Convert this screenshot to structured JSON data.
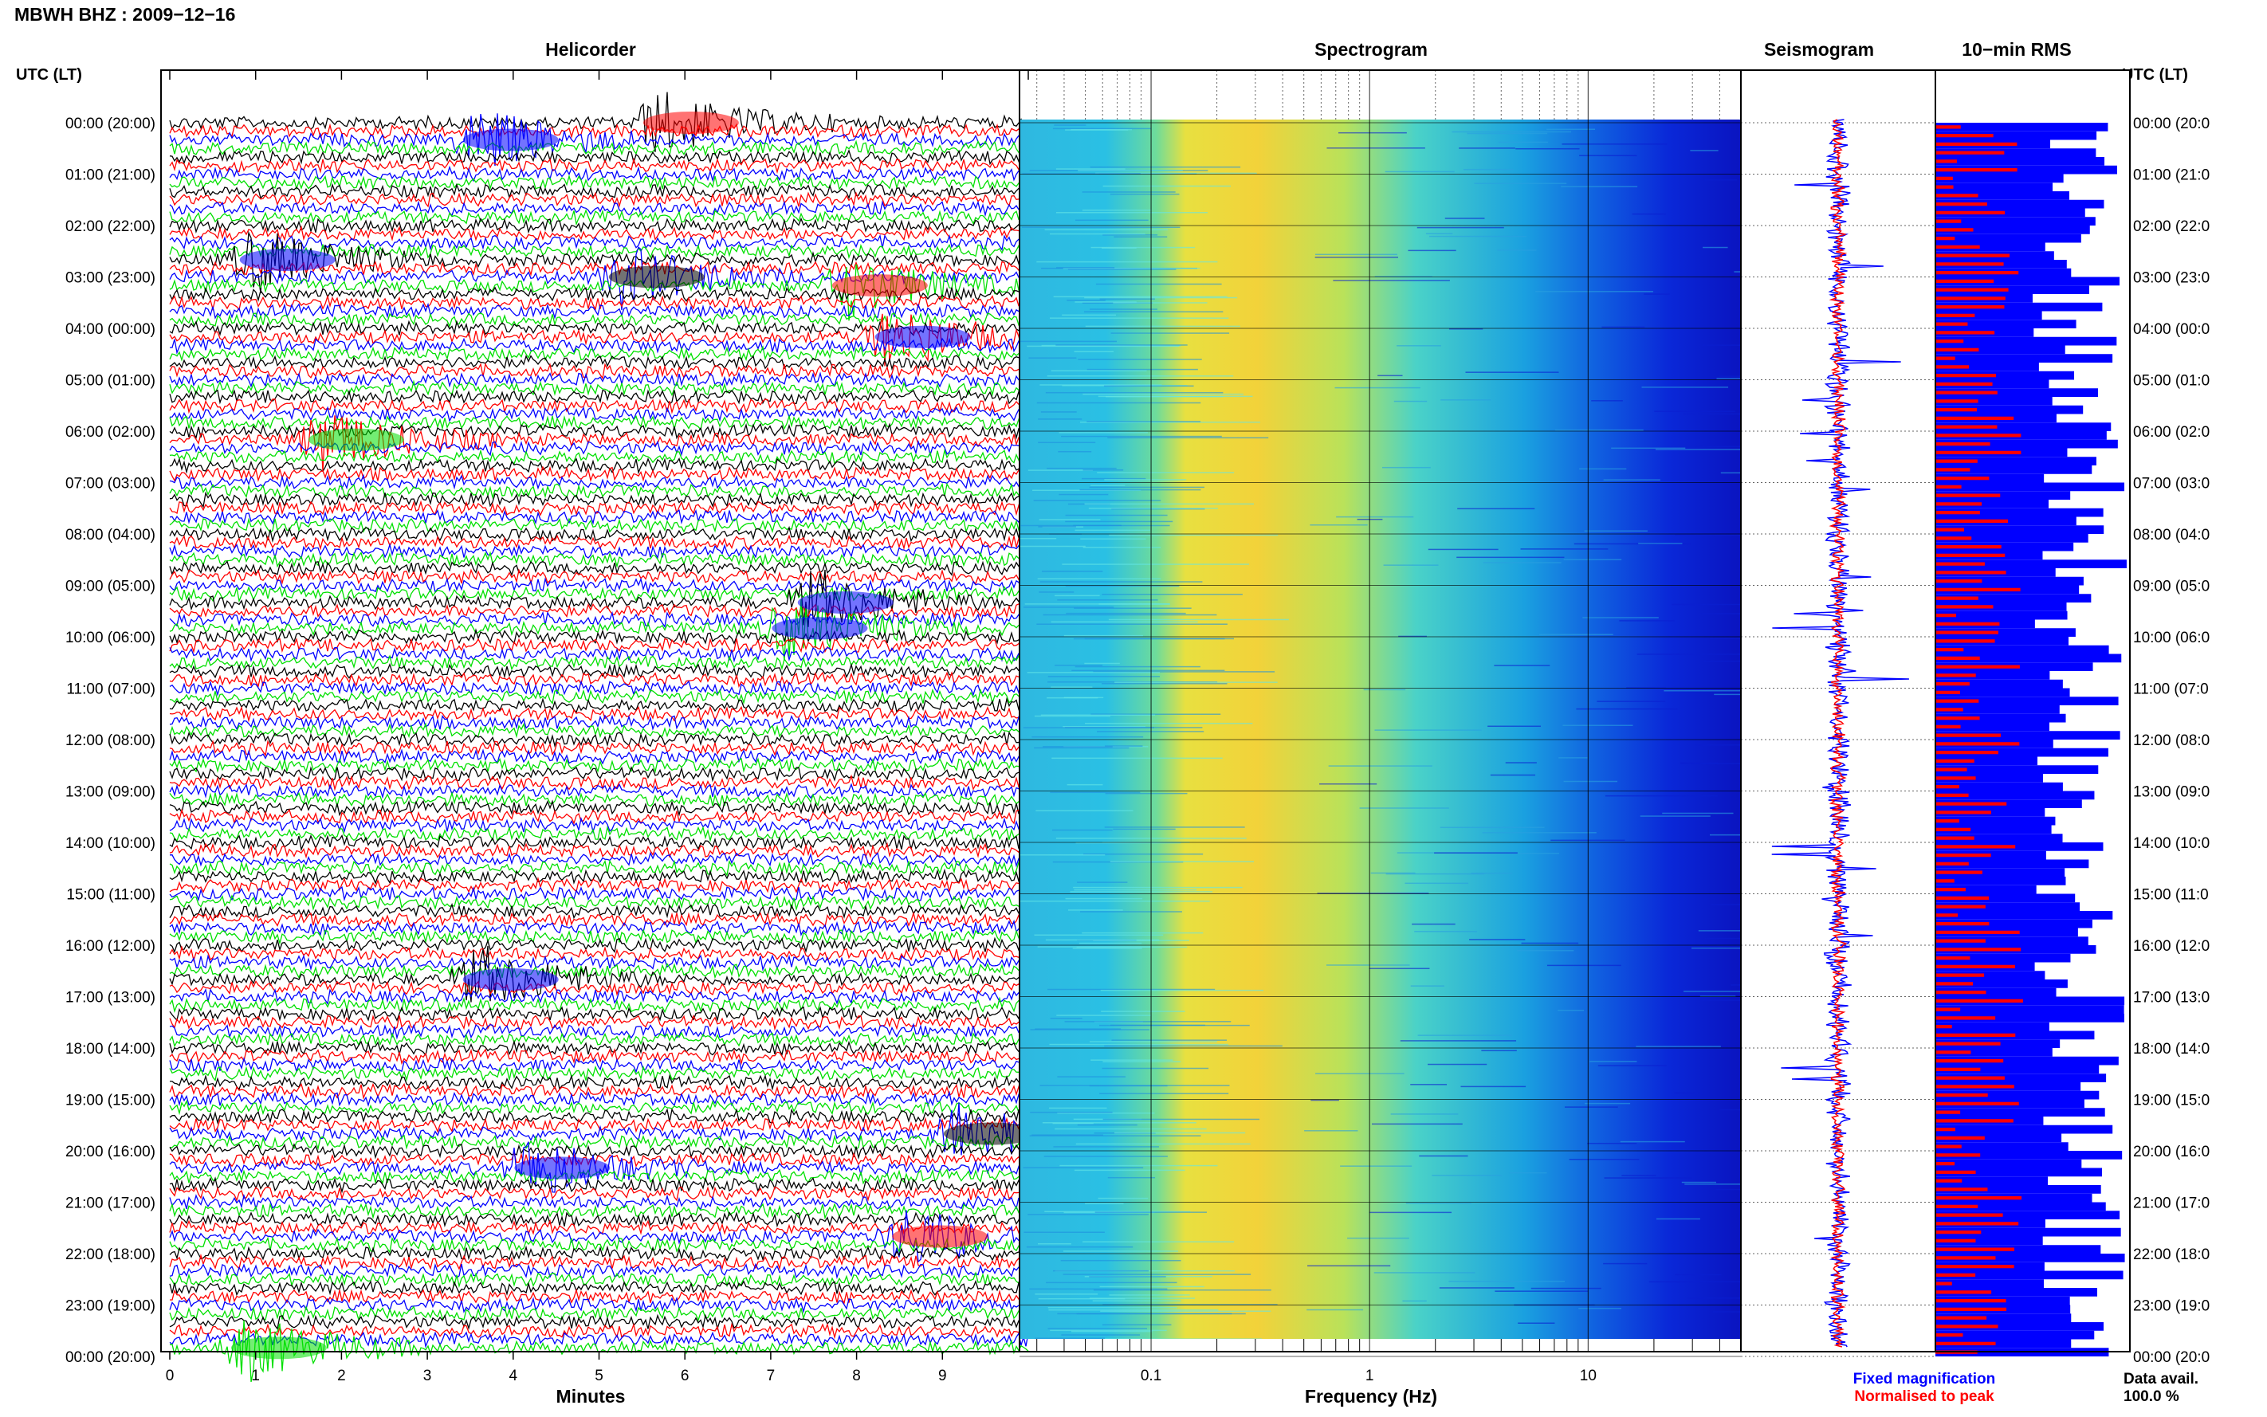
{
  "title": "MBWH BHZ : 2009−12−16",
  "utc_header": "UTC (LT)",
  "panels": {
    "helicorder": "Helicorder",
    "spectrogram": "Spectrogram",
    "seismogram": "Seismogram",
    "rms": "10−min RMS"
  },
  "time_labels": [
    "00:00 (20:00)",
    "01:00 (21:00)",
    "02:00 (22:00)",
    "03:00 (23:00)",
    "04:00 (00:00)",
    "05:00 (01:00)",
    "06:00 (02:00)",
    "07:00 (03:00)",
    "08:00 (04:00)",
    "09:00 (05:00)",
    "10:00 (06:00)",
    "11:00 (07:00)",
    "12:00 (08:00)",
    "13:00 (09:00)",
    "14:00 (10:00)",
    "15:00 (11:00)",
    "16:00 (12:00)",
    "17:00 (13:00)",
    "18:00 (14:00)",
    "19:00 (15:00)",
    "20:00 (16:00)",
    "21:00 (17:00)",
    "22:00 (18:00)",
    "23:00 (19:00)",
    "00:00 (20:00)"
  ],
  "time_labels_right": [
    "00:00 (20:0",
    "01:00 (21:0",
    "02:00 (22:0",
    "03:00 (23:0",
    "04:00 (00:0",
    "05:00 (01:0",
    "06:00 (02:0",
    "07:00 (03:0",
    "08:00 (04:0",
    "09:00 (05:0",
    "10:00 (06:0",
    "11:00 (07:0",
    "12:00 (08:0",
    "13:00 (09:0",
    "14:00 (10:0",
    "15:00 (11:0",
    "16:00 (12:0",
    "17:00 (13:0",
    "18:00 (14:0",
    "19:00 (15:0",
    "20:00 (16:0",
    "21:00 (17:0",
    "22:00 (18:0",
    "23:00 (19:0",
    "00:00 (20:0"
  ],
  "x_axis": {
    "minutes_label": "Minutes",
    "minutes_ticks": [
      "0",
      "1",
      "2",
      "3",
      "4",
      "5",
      "6",
      "7",
      "8",
      "9"
    ],
    "frequency_label": "Frequency (Hz)",
    "frequency_ticks": [
      "0.1",
      "1",
      "10"
    ]
  },
  "legend": {
    "fixed": "Fixed magnification",
    "normalised": "Normalised to peak",
    "data_avail_label": "Data avail.",
    "data_avail_value": "100.0 %"
  },
  "colors": {
    "trace_cycle": [
      "#000000",
      "#ff0000",
      "#0000ff",
      "#00e000"
    ],
    "fixed": "#0000ff",
    "normalised": "#ff0000",
    "spectrogram_low": "#0a14d0",
    "spectrogram_mid": "#22c8e8",
    "spectrogram_high": "#f0e040"
  },
  "chart_data": [
    {
      "type": "line",
      "title": "Helicorder",
      "xlabel": "Minutes",
      "x_ticks": [
        0,
        1,
        2,
        3,
        4,
        5,
        6,
        7,
        8,
        9
      ],
      "xlim": [
        0,
        10
      ],
      "y_range_utc_hours": [
        0,
        24
      ],
      "trace_rows": 144,
      "minutes_per_row": 10,
      "events": [
        {
          "utc": "00:00",
          "minute": 5.7,
          "color": "red"
        },
        {
          "utc": "00:20",
          "minute": 3.6,
          "color": "blue"
        },
        {
          "utc": "02:40",
          "minute": 1.0,
          "color": "blue"
        },
        {
          "utc": "03:00",
          "minute": 5.3,
          "color": "black"
        },
        {
          "utc": "03:10",
          "minute": 7.9,
          "color": "red"
        },
        {
          "utc": "04:10",
          "minute": 8.4,
          "color": "blue"
        },
        {
          "utc": "06:10",
          "minute": 1.8,
          "color": "green"
        },
        {
          "utc": "09:20",
          "minute": 7.5,
          "color": "blue"
        },
        {
          "utc": "09:50",
          "minute": 7.2,
          "color": "blue"
        },
        {
          "utc": "16:40",
          "minute": 3.6,
          "color": "blue"
        },
        {
          "utc": "19:40",
          "minute": 9.2,
          "color": "black"
        },
        {
          "utc": "20:20",
          "minute": 4.2,
          "color": "blue"
        },
        {
          "utc": "21:40",
          "minute": 8.6,
          "color": "red"
        },
        {
          "utc": "23:50",
          "minute": 0.9,
          "color": "green"
        }
      ]
    },
    {
      "type": "heatmap",
      "title": "Spectrogram",
      "xlabel": "Frequency (Hz)",
      "x_scale": "log",
      "x_ticks": [
        0.1,
        1,
        10
      ],
      "xlim": [
        0.025,
        50
      ],
      "dominant_band_hz": [
        0.15,
        0.6
      ]
    },
    {
      "type": "line",
      "title": "Seismogram",
      "series": [
        {
          "name": "Fixed magnification",
          "color": "blue"
        },
        {
          "name": "Normalised to peak",
          "color": "red"
        }
      ]
    },
    {
      "type": "bar",
      "title": "10−min RMS",
      "bar_count": 144,
      "series": [
        {
          "name": "Fixed magnification",
          "color": "blue"
        },
        {
          "name": "Normalised to peak",
          "color": "red"
        }
      ],
      "data_availability_percent": 100.0
    }
  ]
}
